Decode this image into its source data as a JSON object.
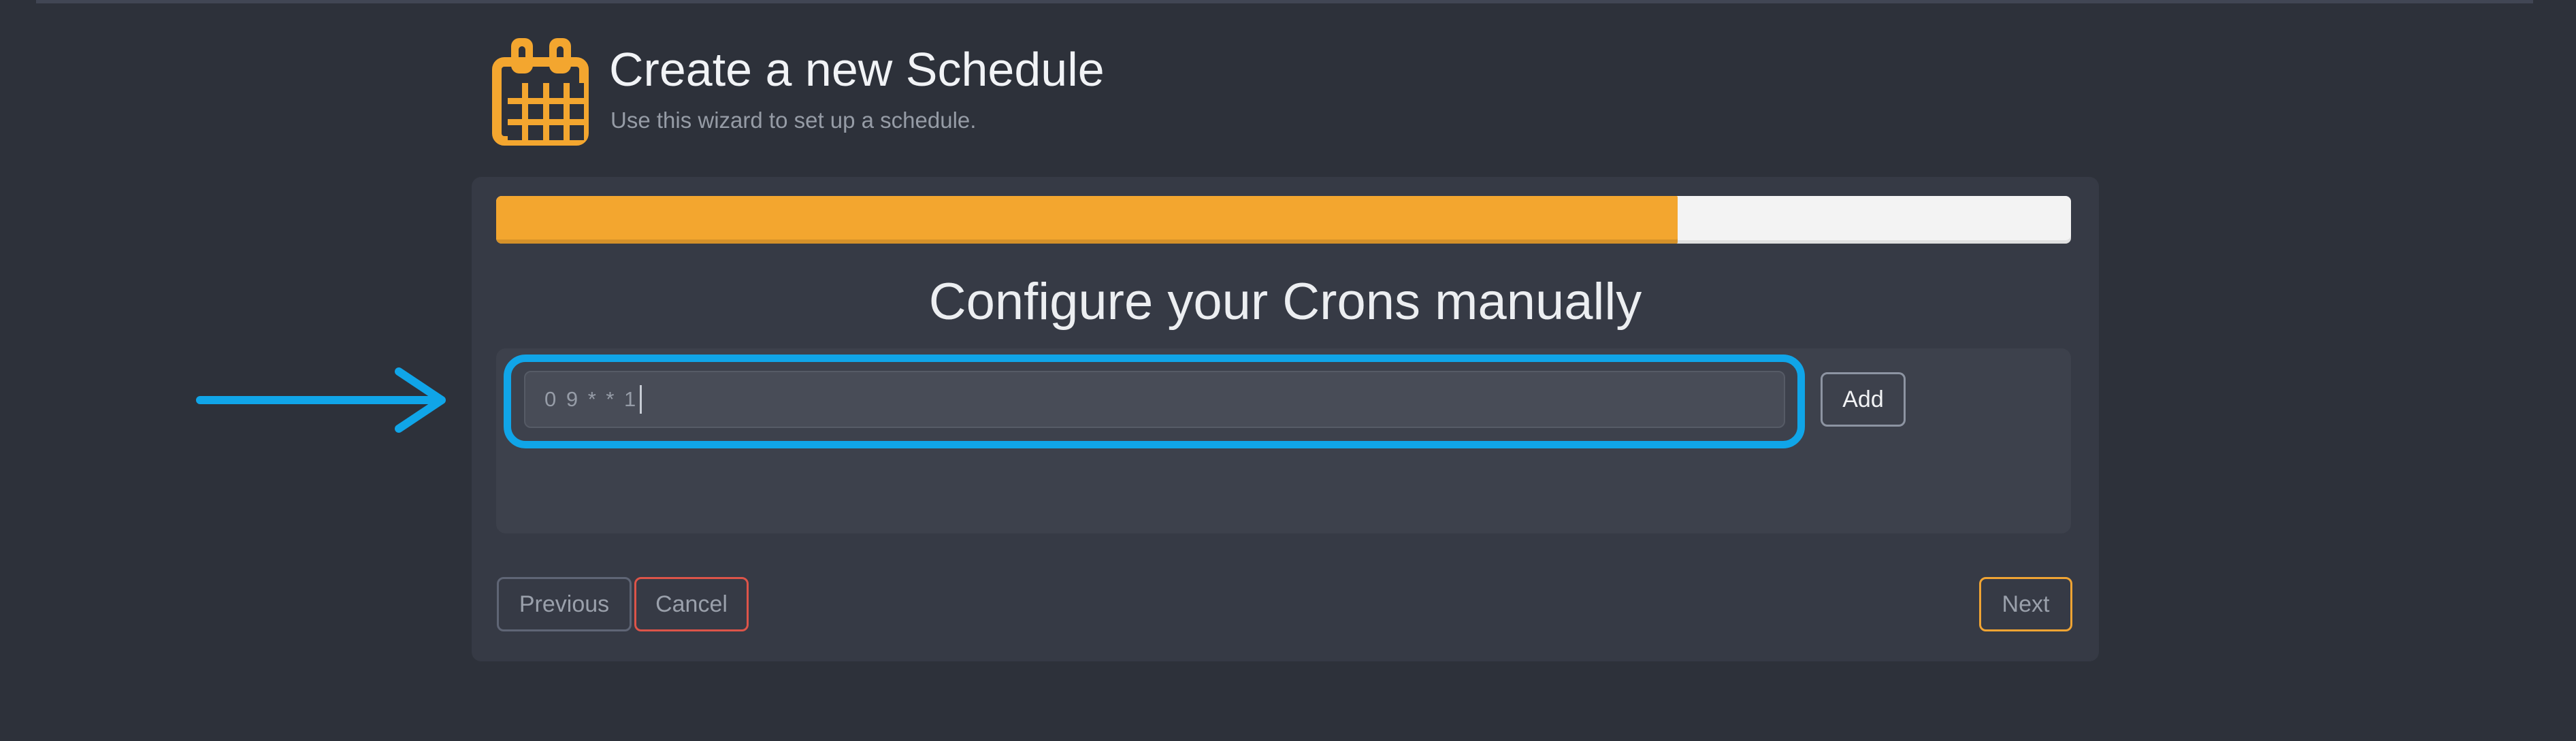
{
  "header": {
    "icon": "calendar-icon",
    "title": "Create a new Schedule",
    "subtitle": "Use this wizard to set up a schedule."
  },
  "wizard": {
    "progress_percent": 75,
    "step_heading": "Configure your Crons manually",
    "cron": {
      "value": "0 9 * * 1",
      "add_label": "Add"
    },
    "footer": {
      "previous_label": "Previous",
      "cancel_label": "Cancel",
      "next_label": "Next"
    }
  },
  "annotations": {
    "arrow": "arrow-right-annotation",
    "highlight": "cron-input-highlight-ring"
  },
  "colors": {
    "page_background": "#2d313a",
    "card_background": "#363a45",
    "section_background": "#3d414c",
    "input_background": "#484c57",
    "accent_orange": "#f3a62f",
    "progress_track": "#f3f3f3",
    "annotation_blue": "#10a5e8",
    "cancel_red": "#dd5449",
    "text_white": "#f1f3f6",
    "text_gray": "#9aa0ab"
  }
}
